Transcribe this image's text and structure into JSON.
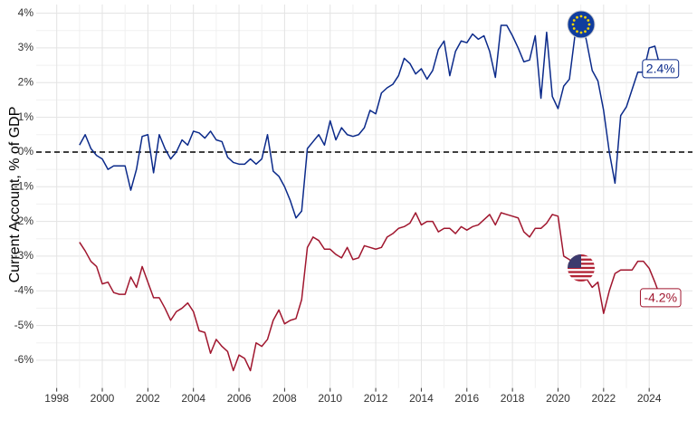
{
  "chart_data": {
    "type": "line",
    "y_axis_label": "Current Account, % of GDP",
    "x": [
      1999,
      1999.25,
      1999.5,
      1999.75,
      2000,
      2000.25,
      2000.5,
      2000.75,
      2001,
      2001.25,
      2001.5,
      2001.75,
      2002,
      2002.25,
      2002.5,
      2002.75,
      2003,
      2003.25,
      2003.5,
      2003.75,
      2004,
      2004.25,
      2004.5,
      2004.75,
      2005,
      2005.25,
      2005.5,
      2005.75,
      2006,
      2006.25,
      2006.5,
      2006.75,
      2007,
      2007.25,
      2007.5,
      2007.75,
      2008,
      2008.25,
      2008.5,
      2008.75,
      2009,
      2009.25,
      2009.5,
      2009.75,
      2010,
      2010.25,
      2010.5,
      2010.75,
      2011,
      2011.25,
      2011.5,
      2011.75,
      2012,
      2012.25,
      2012.5,
      2012.75,
      2013,
      2013.25,
      2013.5,
      2013.75,
      2014,
      2014.25,
      2014.5,
      2014.75,
      2015,
      2015.25,
      2015.5,
      2015.75,
      2016,
      2016.25,
      2016.5,
      2016.75,
      2017,
      2017.25,
      2017.5,
      2017.75,
      2018,
      2018.25,
      2018.5,
      2018.75,
      2019,
      2019.25,
      2019.5,
      2019.75,
      2020,
      2020.25,
      2020.5,
      2020.75,
      2021,
      2021.25,
      2021.5,
      2021.75,
      2022,
      2022.25,
      2022.5,
      2022.75,
      2023,
      2023.25,
      2023.5,
      2023.75,
      2024,
      2024.25,
      2024.5
    ],
    "series": [
      {
        "color": "#0b2a8a",
        "last_label": "2.4%",
        "values": [
          0.2,
          0.5,
          0.1,
          -0.1,
          -0.2,
          -0.5,
          -0.4,
          -0.4,
          -0.4,
          -1.1,
          -0.5,
          0.45,
          0.5,
          -0.6,
          0.5,
          0.1,
          -0.2,
          0.0,
          0.35,
          0.2,
          0.6,
          0.55,
          0.4,
          0.6,
          0.35,
          0.3,
          -0.15,
          -0.3,
          -0.35,
          -0.35,
          -0.2,
          -0.35,
          -0.2,
          0.5,
          -0.55,
          -0.7,
          -1.0,
          -1.4,
          -1.9,
          -1.7,
          0.1,
          0.3,
          0.5,
          0.2,
          0.9,
          0.35,
          0.7,
          0.5,
          0.45,
          0.5,
          0.7,
          1.2,
          1.1,
          1.7,
          1.85,
          1.95,
          2.2,
          2.7,
          2.55,
          2.25,
          2.4,
          2.1,
          2.35,
          2.95,
          3.2,
          2.2,
          2.9,
          3.2,
          3.15,
          3.4,
          3.25,
          3.35,
          2.9,
          2.15,
          3.65,
          3.65,
          3.35,
          3.0,
          2.6,
          2.65,
          3.35,
          1.55,
          3.45,
          1.6,
          1.25,
          1.9,
          2.1,
          3.4,
          3.9,
          3.2,
          2.35,
          2.05,
          1.2,
          0.0,
          -0.9,
          1.05,
          1.3,
          1.8,
          2.3,
          2.3,
          3.0,
          3.05,
          2.4
        ]
      },
      {
        "color": "#a0162e",
        "last_label": "-4.2%",
        "values": [
          -2.6,
          -2.85,
          -3.15,
          -3.3,
          -3.8,
          -3.75,
          -4.05,
          -4.1,
          -4.1,
          -3.6,
          -3.9,
          -3.3,
          -3.75,
          -4.2,
          -4.2,
          -4.5,
          -4.85,
          -4.6,
          -4.5,
          -4.35,
          -4.6,
          -5.15,
          -5.2,
          -5.8,
          -5.4,
          -5.6,
          -5.75,
          -6.3,
          -5.85,
          -5.95,
          -6.3,
          -5.5,
          -5.6,
          -5.4,
          -4.85,
          -4.55,
          -4.95,
          -4.85,
          -4.8,
          -4.25,
          -2.75,
          -2.45,
          -2.55,
          -2.8,
          -2.8,
          -2.95,
          -3.05,
          -2.75,
          -3.1,
          -3.05,
          -2.7,
          -2.75,
          -2.8,
          -2.75,
          -2.45,
          -2.35,
          -2.2,
          -2.15,
          -2.05,
          -1.75,
          -2.1,
          -2.0,
          -2.0,
          -2.3,
          -2.2,
          -2.2,
          -2.35,
          -2.15,
          -2.25,
          -2.15,
          -2.1,
          -1.95,
          -1.8,
          -2.1,
          -1.75,
          -1.8,
          -1.85,
          -1.9,
          -2.3,
          -2.45,
          -2.2,
          -2.2,
          -2.05,
          -1.8,
          -1.85,
          -3.0,
          -3.1,
          -3.3,
          -3.55,
          -3.65,
          -3.9,
          -3.75,
          -4.65,
          -4.0,
          -3.5,
          -3.4,
          -3.4,
          -3.4,
          -3.15,
          -3.15,
          -3.35,
          -3.75,
          -4.2
        ]
      }
    ],
    "xlim": [
      1997.1,
      2025.9
    ],
    "xticks": [
      1998,
      2000,
      2002,
      2004,
      2006,
      2008,
      2010,
      2012,
      2014,
      2016,
      2018,
      2020,
      2022,
      2024
    ],
    "ylim": [
      -6.8,
      4.25
    ],
    "yticks": [
      {
        "value": -6,
        "label": "-6%"
      },
      {
        "value": -5,
        "label": "-5%"
      },
      {
        "value": -4,
        "label": "-4%"
      },
      {
        "value": -3,
        "label": "-3%"
      },
      {
        "value": -2,
        "label": "-2%"
      },
      {
        "value": -1,
        "label": "-1%"
      },
      {
        "value": 0,
        "label": "0%"
      },
      {
        "value": 1,
        "label": "1%"
      },
      {
        "value": 2,
        "label": "2%"
      },
      {
        "value": 3,
        "label": "3%"
      },
      {
        "value": 4,
        "label": "4%"
      }
    ],
    "grid": true
  }
}
